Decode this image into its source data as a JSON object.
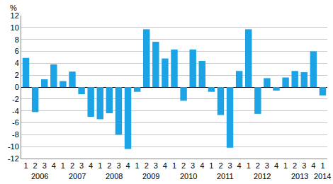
{
  "chart_data": {
    "type": "bar",
    "ylabel": "%",
    "categories": [
      "1",
      "2",
      "3",
      "4",
      "1",
      "2",
      "3",
      "4",
      "1",
      "2",
      "3",
      "4",
      "1",
      "2",
      "3",
      "4",
      "1",
      "2",
      "3",
      "4",
      "1",
      "2",
      "3",
      "4",
      "1",
      "2",
      "3",
      "4",
      "1",
      "2",
      "3",
      "4",
      "1"
    ],
    "years": [
      "2006",
      "2006",
      "2006",
      "2006",
      "2007",
      "2007",
      "2007",
      "2007",
      "2008",
      "2008",
      "2008",
      "2008",
      "2009",
      "2009",
      "2009",
      "2009",
      "2010",
      "2010",
      "2010",
      "2010",
      "2011",
      "2011",
      "2011",
      "2011",
      "2012",
      "2012",
      "2012",
      "2012",
      "2013",
      "2013",
      "2013",
      "2013",
      "2014"
    ],
    "values": [
      4.9,
      -4.2,
      1.3,
      3.8,
      1.0,
      2.6,
      -1.2,
      -5.0,
      -5.4,
      -4.4,
      -8.0,
      -10.4,
      -0.8,
      9.7,
      7.6,
      4.8,
      6.3,
      -2.3,
      6.3,
      4.4,
      -0.8,
      -4.7,
      -10.2,
      2.7,
      9.7,
      -4.5,
      1.5,
      -0.6,
      1.6,
      2.7,
      2.5,
      6.0,
      -1.4
    ],
    "color": "#1ba3e6",
    "ylim": [
      -12,
      12
    ],
    "yticks": [
      -12,
      -10,
      -8,
      -6,
      -4,
      -2,
      0,
      2,
      4,
      6,
      8,
      10,
      12
    ],
    "grid": true
  }
}
